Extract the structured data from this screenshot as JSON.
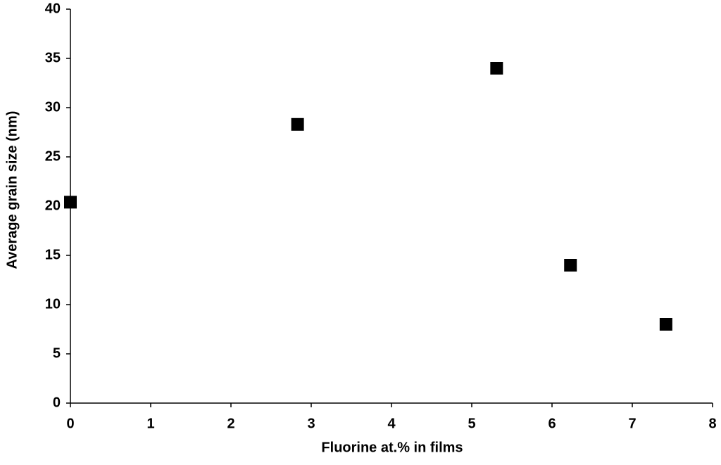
{
  "chart_data": {
    "type": "scatter",
    "x_label": "Fluorine at.% in films",
    "y_label": "Average grain size (nm)",
    "series": [
      {
        "color": "#000000",
        "marker": "square",
        "x": [
          0,
          2.83,
          5.31,
          6.23,
          7.42
        ],
        "values": [
          20.4,
          28.3,
          34.0,
          14.0,
          8.0
        ]
      }
    ],
    "xlim": [
      0,
      8
    ],
    "xticks": [
      0,
      1,
      2,
      3,
      4,
      5,
      6,
      7,
      8
    ],
    "ylim": [
      0,
      40
    ],
    "yticks": [
      0,
      5,
      10,
      15,
      20,
      25,
      30,
      35,
      40
    ],
    "grid": false
  }
}
